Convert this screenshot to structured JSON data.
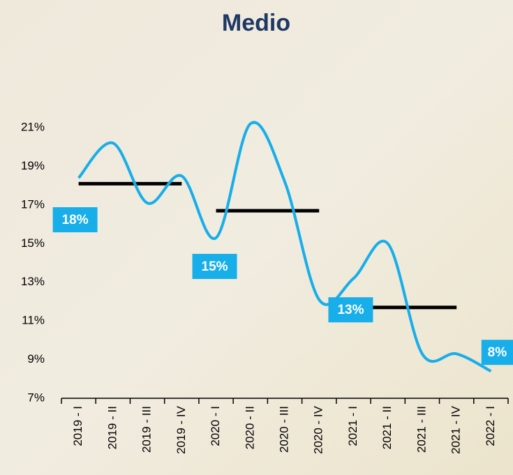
{
  "chart_data": {
    "type": "line",
    "title": "Medio",
    "categories": [
      "2019 - I",
      "2019 - II",
      "2019 - III",
      "2019 - IV",
      "2020 - I",
      "2020 - II",
      "2020 - III",
      "2020 - IV",
      "2021 - I",
      "2021 - II",
      "2021 - III",
      "2021 - IV",
      "2022 - I"
    ],
    "series": [
      {
        "color": "#17aeea",
        "values": [
          18.4,
          20.2,
          17.1,
          18.5,
          15.3,
          21.2,
          18.2,
          12.1,
          13.2,
          15.0,
          9.3,
          9.3,
          8.4
        ],
        "value_labels": [
          "18%",
          null,
          null,
          null,
          "15%",
          null,
          null,
          null,
          "13%",
          null,
          null,
          null,
          "8%"
        ]
      },
      {
        "color": "#000000",
        "values": [
          18.1,
          18.1,
          18.1,
          18.1,
          16.7,
          16.7,
          16.7,
          16.7,
          11.7,
          11.7,
          11.7,
          11.7,
          null
        ]
      }
    ],
    "ylim": [
      7,
      21
    ],
    "yticks": [
      {
        "value": 7,
        "label": "7%"
      },
      {
        "value": 9,
        "label": "9%"
      },
      {
        "value": 11,
        "label": "11%"
      },
      {
        "value": 13,
        "label": "13%"
      },
      {
        "value": 15,
        "label": "15%"
      },
      {
        "value": 17,
        "label": "17%"
      },
      {
        "value": 19,
        "label": "19%"
      },
      {
        "value": 21,
        "label": "21%"
      }
    ],
    "grid": false
  }
}
